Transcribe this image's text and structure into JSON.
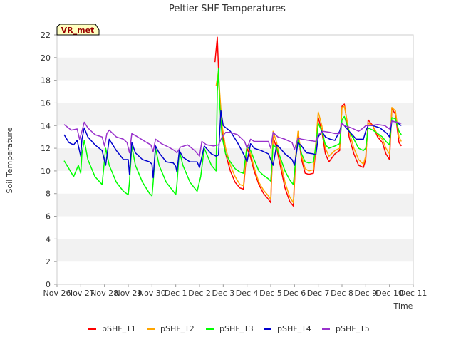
{
  "chart_data": {
    "type": "line",
    "title": "Peltier SHF Temperatures",
    "xlabel": "Time",
    "ylabel": "Soil Temperature",
    "site_label": "VR_met",
    "xlim": [
      0,
      15
    ],
    "ylim": [
      0,
      22
    ],
    "yticks": [
      0,
      2,
      4,
      6,
      8,
      10,
      12,
      14,
      16,
      18,
      20,
      22
    ],
    "xticks": [
      {
        "x": 0,
        "label": "Nov 26"
      },
      {
        "x": 1,
        "label": "Nov 27"
      },
      {
        "x": 2,
        "label": "Nov 28"
      },
      {
        "x": 3,
        "label": "Nov 29"
      },
      {
        "x": 4,
        "label": "Nov 30"
      },
      {
        "x": 5,
        "label": "Dec 1"
      },
      {
        "x": 6,
        "label": "Dec 2"
      },
      {
        "x": 7,
        "label": "Dec 3"
      },
      {
        "x": 8,
        "label": "Dec 4"
      },
      {
        "x": 9,
        "label": "Dec 5"
      },
      {
        "x": 10,
        "label": "Dec 6"
      },
      {
        "x": 11,
        "label": "Dec 7"
      },
      {
        "x": 12,
        "label": "Dec 8"
      },
      {
        "x": 13,
        "label": "Dec 9"
      },
      {
        "x": 14,
        "label": "Dec 10"
      },
      {
        "x": 15,
        "label": "Dec 11"
      }
    ],
    "grid": "horizontal bands",
    "legend_position": "bottom",
    "series": [
      {
        "name": "pSHF_T1",
        "color": "#ff0000",
        "x": [
          6.65,
          6.75,
          6.8,
          6.85,
          6.95,
          7.1,
          7.3,
          7.5,
          7.7,
          7.85,
          8.0,
          8.15,
          8.3,
          8.5,
          8.7,
          8.9,
          9.0,
          9.1,
          9.25,
          9.4,
          9.6,
          9.8,
          9.95,
          10.05,
          10.15,
          10.3,
          10.45,
          10.6,
          10.8,
          10.9,
          11.0,
          11.15,
          11.3,
          11.45,
          11.7,
          11.9,
          12.0,
          12.1,
          12.3,
          12.5,
          12.7,
          12.9,
          13.0,
          13.1,
          13.3,
          13.5,
          13.7,
          13.85,
          14.0,
          14.1,
          14.25,
          14.4,
          14.5
        ],
        "y": [
          19.6,
          21.8,
          19.0,
          16.0,
          13.5,
          11.5,
          10.0,
          9.0,
          8.5,
          8.4,
          12.0,
          11.2,
          10.0,
          8.8,
          8.0,
          7.5,
          7.2,
          13.0,
          12.0,
          10.5,
          8.5,
          7.3,
          6.9,
          11.0,
          13.3,
          11.0,
          9.8,
          9.7,
          9.8,
          12.0,
          14.7,
          13.5,
          11.5,
          10.8,
          11.5,
          11.8,
          15.7,
          15.9,
          13.0,
          11.5,
          10.5,
          10.3,
          11.0,
          14.5,
          14.0,
          13.0,
          12.5,
          11.5,
          11.0,
          15.5,
          15.0,
          12.5,
          12.2
        ]
      },
      {
        "name": "pSHF_T2",
        "color": "#ffa500",
        "x": [
          6.7,
          6.8,
          6.85,
          6.95,
          7.1,
          7.3,
          7.5,
          7.7,
          7.85,
          8.0,
          8.15,
          8.3,
          8.5,
          8.7,
          8.9,
          9.0,
          9.1,
          9.25,
          9.4,
          9.6,
          9.8,
          9.95,
          10.05,
          10.15,
          10.3,
          10.45,
          10.6,
          10.8,
          10.9,
          11.0,
          11.15,
          11.3,
          11.45,
          11.7,
          11.9,
          12.0,
          12.1,
          12.3,
          12.5,
          12.7,
          12.9,
          13.0,
          13.1,
          13.3,
          13.5,
          13.7,
          13.85,
          14.0,
          14.1,
          14.25,
          14.4,
          14.5
        ],
        "y": [
          17.5,
          18.8,
          17.0,
          14.0,
          12.0,
          10.5,
          9.5,
          8.8,
          8.7,
          12.3,
          11.5,
          10.3,
          9.0,
          8.3,
          7.8,
          7.5,
          13.5,
          12.5,
          11.0,
          9.0,
          7.7,
          7.2,
          11.3,
          13.5,
          11.3,
          10.2,
          10.0,
          10.1,
          12.5,
          15.2,
          14.0,
          12.0,
          11.3,
          11.8,
          12.0,
          15.6,
          15.7,
          13.5,
          12.0,
          11.0,
          10.6,
          11.3,
          14.2,
          14.0,
          13.2,
          12.8,
          12.0,
          11.5,
          15.6,
          15.3,
          13.0,
          12.6
        ]
      },
      {
        "name": "pSHF_T3",
        "color": "#00ff00",
        "x": [
          0.3,
          0.5,
          0.7,
          0.9,
          1.0,
          1.05,
          1.15,
          1.3,
          1.6,
          1.9,
          2.05,
          2.2,
          2.5,
          2.8,
          3.0,
          3.05,
          3.15,
          3.3,
          3.6,
          3.9,
          4.0,
          4.05,
          4.15,
          4.3,
          4.6,
          4.9,
          5.0,
          5.05,
          5.15,
          5.3,
          5.6,
          5.9,
          6.05,
          6.2,
          6.5,
          6.7,
          6.75,
          6.8,
          6.85,
          6.95,
          7.1,
          7.3,
          7.5,
          7.7,
          7.85,
          8.0,
          8.15,
          8.3,
          8.5,
          8.7,
          8.9,
          9.0,
          9.1,
          9.25,
          9.4,
          9.6,
          9.8,
          9.95,
          10.05,
          10.15,
          10.3,
          10.45,
          10.6,
          10.8,
          10.9,
          11.0,
          11.15,
          11.3,
          11.45,
          11.7,
          11.9,
          12.0,
          12.1,
          12.3,
          12.5,
          12.7,
          12.9,
          13.0,
          13.1,
          13.3,
          13.5,
          13.7,
          13.85,
          14.0,
          14.1,
          14.25,
          14.4,
          14.5
        ],
        "y": [
          10.9,
          10.2,
          9.5,
          10.5,
          9.8,
          11.5,
          12.7,
          11.0,
          9.5,
          8.8,
          12.0,
          10.5,
          9.0,
          8.2,
          7.9,
          9.0,
          12.2,
          10.5,
          9.0,
          8.0,
          7.8,
          9.0,
          12.0,
          10.5,
          9.0,
          8.2,
          7.9,
          8.8,
          11.8,
          10.5,
          9.0,
          8.2,
          9.5,
          12.0,
          10.5,
          10.0,
          17.0,
          19.0,
          16.0,
          13.0,
          11.5,
          10.8,
          10.2,
          9.9,
          9.8,
          12.2,
          11.8,
          11.0,
          10.0,
          9.6,
          9.3,
          9.1,
          12.3,
          12.0,
          11.2,
          10.0,
          9.2,
          8.8,
          11.0,
          12.8,
          11.5,
          10.8,
          10.7,
          10.8,
          12.2,
          14.2,
          13.5,
          12.3,
          12.0,
          12.2,
          12.4,
          14.5,
          14.8,
          13.5,
          12.8,
          12.0,
          11.8,
          12.0,
          13.8,
          13.6,
          13.3,
          13.0,
          12.6,
          12.3,
          14.7,
          14.6,
          13.5,
          13.2
        ]
      },
      {
        "name": "pSHF_T4",
        "color": "#0000cd",
        "x": [
          0.3,
          0.5,
          0.7,
          0.85,
          1.0,
          1.05,
          1.15,
          1.3,
          1.6,
          1.9,
          2.05,
          2.2,
          2.5,
          2.8,
          3.0,
          3.05,
          3.15,
          3.3,
          3.6,
          3.9,
          4.0,
          4.05,
          4.15,
          4.3,
          4.6,
          4.9,
          5.0,
          5.05,
          5.15,
          5.3,
          5.6,
          5.9,
          6.0,
          6.2,
          6.5,
          6.7,
          6.8,
          6.9,
          7.0,
          7.3,
          7.6,
          7.85,
          8.0,
          8.15,
          8.3,
          8.6,
          8.9,
          9.0,
          9.1,
          9.25,
          9.4,
          9.6,
          9.9,
          10.0,
          10.15,
          10.3,
          10.5,
          10.8,
          10.9,
          11.0,
          11.15,
          11.3,
          11.5,
          11.7,
          11.9,
          12.0,
          12.1,
          12.3,
          12.6,
          12.9,
          13.0,
          13.1,
          13.3,
          13.6,
          13.9,
          14.0,
          14.1,
          14.3,
          14.5
        ],
        "y": [
          13.2,
          12.5,
          12.3,
          12.7,
          11.3,
          12.8,
          13.8,
          13.0,
          12.3,
          11.8,
          10.5,
          12.8,
          11.8,
          11.0,
          11.0,
          9.7,
          12.5,
          11.6,
          11.0,
          10.8,
          10.6,
          9.4,
          12.2,
          11.6,
          10.8,
          10.7,
          10.4,
          9.9,
          11.8,
          11.2,
          10.8,
          10.8,
          10.3,
          12.2,
          11.5,
          11.3,
          11.4,
          15.3,
          14.0,
          13.5,
          12.5,
          11.5,
          10.8,
          12.4,
          12.0,
          11.8,
          11.5,
          11.0,
          10.5,
          12.3,
          12.0,
          11.5,
          11.0,
          10.5,
          12.5,
          12.2,
          11.6,
          11.5,
          11.4,
          13.0,
          13.5,
          13.0,
          12.8,
          12.7,
          13.5,
          14.2,
          14.0,
          13.5,
          12.8,
          12.8,
          13.5,
          14.0,
          14.0,
          13.8,
          13.3,
          13.0,
          14.4,
          14.3,
          14.0
        ]
      },
      {
        "name": "pSHF_T5",
        "color": "#9932cc",
        "x": [
          0.3,
          0.6,
          0.85,
          0.95,
          1.05,
          1.15,
          1.3,
          1.6,
          1.9,
          2.0,
          2.1,
          2.2,
          2.5,
          2.8,
          2.95,
          3.05,
          3.15,
          3.4,
          3.7,
          3.95,
          4.05,
          4.15,
          4.4,
          4.7,
          4.95,
          5.05,
          5.2,
          5.5,
          5.8,
          6.0,
          6.1,
          6.3,
          6.6,
          6.8,
          6.95,
          7.1,
          7.3,
          7.6,
          7.9,
          8.0,
          8.15,
          8.3,
          8.6,
          8.9,
          9.0,
          9.1,
          9.3,
          9.6,
          9.9,
          10.0,
          10.15,
          10.3,
          10.6,
          10.9,
          11.0,
          11.2,
          11.5,
          11.7,
          11.9,
          12.0,
          12.1,
          12.4,
          12.7,
          12.9,
          13.0,
          13.2,
          13.5,
          13.8,
          14.0,
          14.1,
          14.3,
          14.5
        ],
        "y": [
          14.1,
          13.6,
          13.7,
          12.8,
          13.5,
          14.3,
          13.8,
          13.2,
          13.0,
          12.2,
          13.3,
          13.6,
          13.0,
          12.8,
          12.5,
          11.6,
          13.3,
          13.0,
          12.6,
          12.3,
          11.7,
          12.8,
          12.4,
          12.1,
          11.8,
          11.6,
          12.1,
          12.3,
          11.8,
          11.3,
          12.6,
          12.3,
          12.2,
          12.3,
          13.0,
          13.4,
          13.4,
          13.2,
          12.6,
          12.0,
          12.8,
          12.6,
          12.6,
          12.6,
          12.0,
          13.4,
          13.0,
          12.8,
          12.5,
          11.9,
          12.9,
          12.8,
          12.7,
          12.6,
          13.2,
          13.5,
          13.4,
          13.3,
          13.3,
          14.2,
          14.0,
          13.8,
          13.5,
          13.8,
          14.0,
          14.0,
          14.1,
          14.0,
          13.7,
          14.4,
          14.3,
          14.2
        ]
      }
    ]
  }
}
